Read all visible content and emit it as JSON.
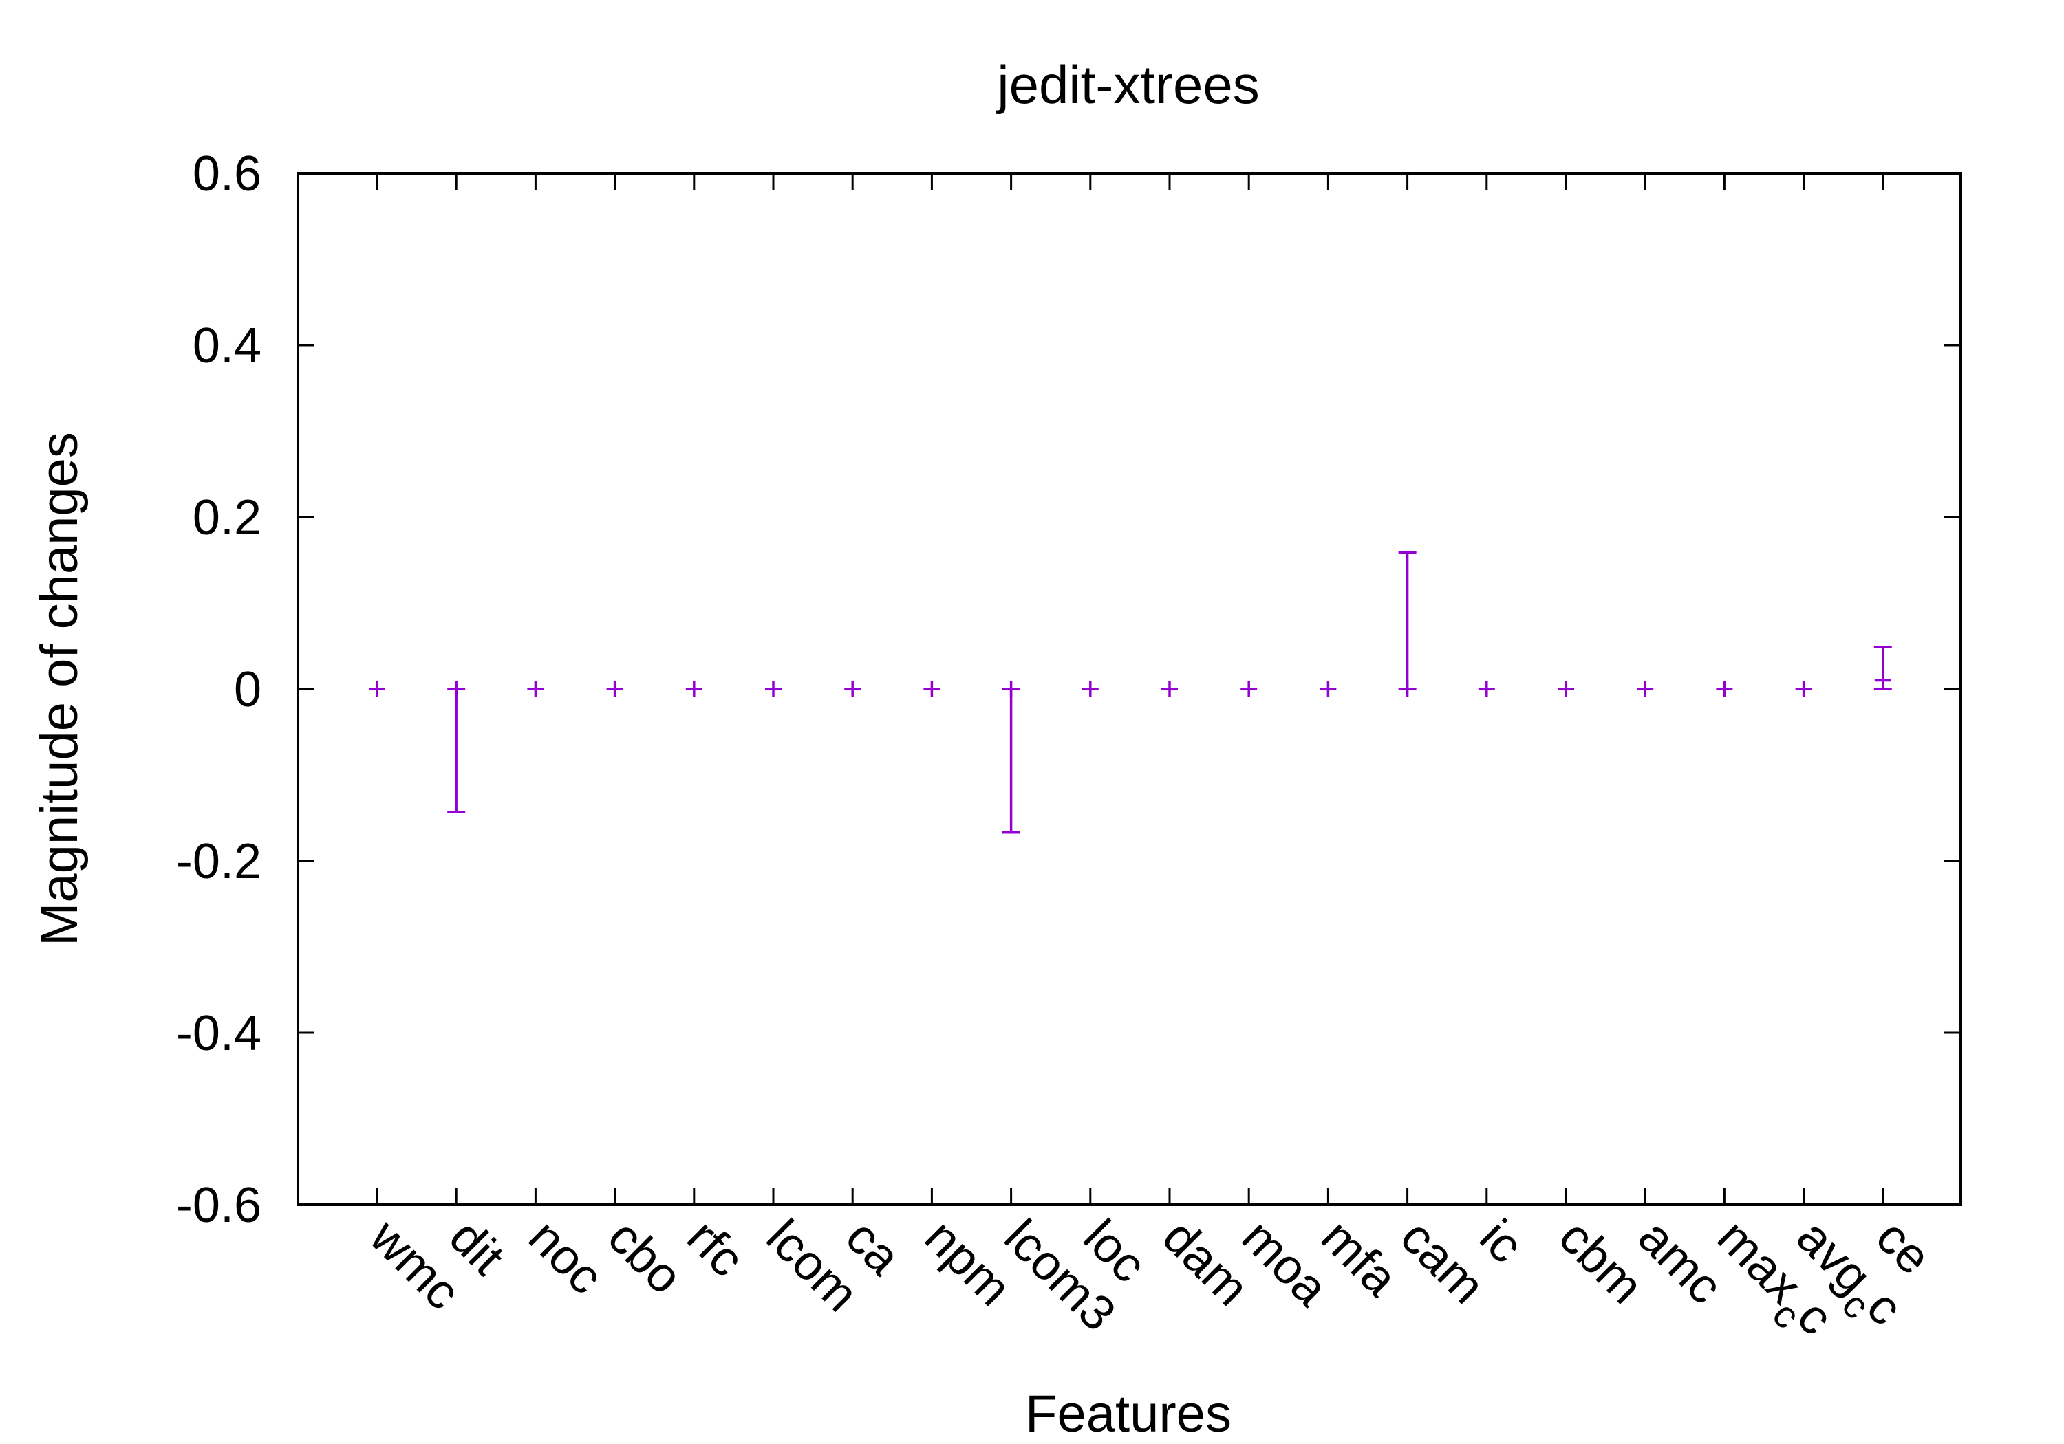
{
  "chart_data": {
    "type": "errorbar",
    "title": "jedit-xtrees",
    "xlabel": "Features",
    "ylabel": "Magnitude of changes",
    "ylim": [
      -0.6,
      0.6
    ],
    "yticks": [
      0.6,
      0.4,
      0.2,
      0,
      -0.2,
      -0.4,
      -0.6
    ],
    "ytick_labels": [
      "0.6",
      "0.4",
      "0.2",
      "0",
      "-0.2",
      "-0.4",
      "-0.6"
    ],
    "grid": false,
    "legend": "none",
    "color": "#9400D3",
    "categories": [
      {
        "label": "wmc",
        "sub": ""
      },
      {
        "label": "dit",
        "sub": ""
      },
      {
        "label": "noc",
        "sub": ""
      },
      {
        "label": "cbo",
        "sub": ""
      },
      {
        "label": "rfc",
        "sub": ""
      },
      {
        "label": "lcom",
        "sub": ""
      },
      {
        "label": "ca",
        "sub": ""
      },
      {
        "label": "npm",
        "sub": ""
      },
      {
        "label": "lcom3",
        "sub": ""
      },
      {
        "label": "loc",
        "sub": ""
      },
      {
        "label": "dam",
        "sub": ""
      },
      {
        "label": "moa",
        "sub": ""
      },
      {
        "label": "mfa",
        "sub": ""
      },
      {
        "label": "cam",
        "sub": ""
      },
      {
        "label": "ic",
        "sub": ""
      },
      {
        "label": "cbm",
        "sub": ""
      },
      {
        "label": "amc",
        "sub": ""
      },
      {
        "label": "max",
        "sub": "c",
        "tail": "c"
      },
      {
        "label": "avg",
        "sub": "c",
        "tail": "c"
      },
      {
        "label": "ce",
        "sub": ""
      }
    ],
    "points": [
      {
        "value": 0,
        "low": 0,
        "high": 0
      },
      {
        "value": 0,
        "low": -0.143,
        "high": 0
      },
      {
        "value": 0,
        "low": 0,
        "high": 0
      },
      {
        "value": 0,
        "low": 0,
        "high": 0
      },
      {
        "value": 0,
        "low": 0,
        "high": 0
      },
      {
        "value": 0,
        "low": 0,
        "high": 0
      },
      {
        "value": 0,
        "low": 0,
        "high": 0
      },
      {
        "value": 0,
        "low": 0,
        "high": 0
      },
      {
        "value": 0,
        "low": -0.167,
        "high": 0
      },
      {
        "value": 0,
        "low": 0,
        "high": 0
      },
      {
        "value": 0,
        "low": 0,
        "high": 0
      },
      {
        "value": 0,
        "low": 0,
        "high": 0
      },
      {
        "value": 0,
        "low": 0,
        "high": 0
      },
      {
        "value": 0,
        "low": 0,
        "high": 0.159
      },
      {
        "value": 0,
        "low": 0,
        "high": 0
      },
      {
        "value": 0,
        "low": 0,
        "high": 0
      },
      {
        "value": 0,
        "low": 0,
        "high": 0
      },
      {
        "value": 0,
        "low": 0,
        "high": 0
      },
      {
        "value": 0,
        "low": 0,
        "high": 0
      },
      {
        "value": 0.01,
        "low": 0,
        "high": 0.049
      }
    ]
  }
}
